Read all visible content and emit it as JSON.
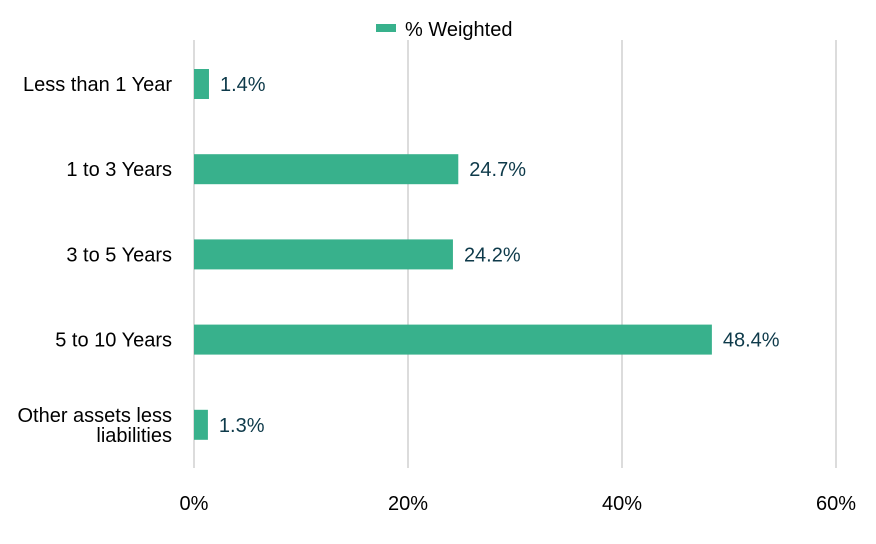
{
  "chart_data": {
    "type": "bar",
    "orientation": "horizontal",
    "categories": [
      [
        "Less than 1 Year"
      ],
      [
        "1 to 3 Years"
      ],
      [
        "3 to 5 Years"
      ],
      [
        "5 to 10 Years"
      ],
      [
        "Other assets less",
        "liabilities"
      ]
    ],
    "series": [
      {
        "name": "% Weighted",
        "values": [
          1.4,
          24.7,
          24.2,
          48.4,
          1.3
        ],
        "labels": [
          "1.4%",
          "24.7%",
          "24.2%",
          "48.4%",
          "1.3%"
        ],
        "color": "#38b18c"
      }
    ],
    "xlim": [
      0,
      60
    ],
    "xticks": [
      0,
      20,
      40,
      60
    ],
    "xtick_labels": [
      "0%",
      "20%",
      "40%",
      "60%"
    ],
    "grid": "vertical",
    "legend": "top-center",
    "label_color": "#0e3a4a",
    "grid_color": "#d0d0d0"
  }
}
